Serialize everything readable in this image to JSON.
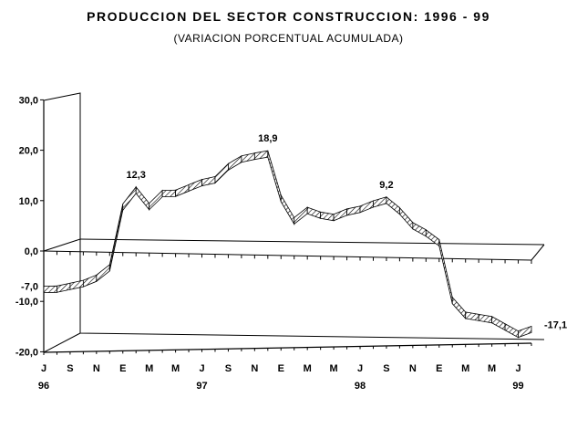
{
  "chart_data": {
    "type": "line",
    "title": "PRODUCCION DEL SECTOR CONSTRUCCION: 1996 - 99",
    "subtitle": "(VARIACION PORCENTUAL ACUMULADA)",
    "xlabel": "",
    "ylabel": "",
    "ylim": [
      -20,
      30
    ],
    "yticks": [
      "30,0",
      "20,0",
      "10,0",
      "0,0",
      "-10,0",
      "-20,0"
    ],
    "x_month_labels": [
      "J",
      "S",
      "N",
      "E",
      "M",
      "M",
      "J",
      "S",
      "N",
      "E",
      "M",
      "M",
      "J",
      "S",
      "N",
      "E",
      "M",
      "M",
      "J"
    ],
    "x_year_labels": [
      {
        "month_index": 0,
        "label": "96"
      },
      {
        "month_index": 12,
        "label": "97"
      },
      {
        "month_index": 24,
        "label": "98"
      },
      {
        "month_index": 36,
        "label": "99"
      }
    ],
    "series": [
      {
        "values": [
          -7.0,
          -7.0,
          -6.5,
          -6.0,
          -5.0,
          -3.0,
          9.0,
          12.3,
          9.0,
          11.5,
          11.5,
          12.5,
          13.5,
          14.0,
          16.5,
          18.0,
          18.5,
          18.9,
          10.0,
          5.5,
          7.5,
          6.5,
          6.0,
          7.0,
          7.5,
          8.5,
          9.2,
          7.0,
          4.0,
          2.5,
          0.5,
          -11.0,
          -14.0,
          -14.5,
          -15.0,
          -16.5,
          -18.0,
          -17.1
        ]
      }
    ],
    "point_labels": [
      {
        "index": 0,
        "text": "-7,0"
      },
      {
        "index": 7,
        "text": "12,3"
      },
      {
        "index": 17,
        "text": "18,9"
      },
      {
        "index": 26,
        "text": "9,2"
      },
      {
        "index": 37,
        "text": "-17,1"
      }
    ],
    "grid": false,
    "legend": "none"
  }
}
